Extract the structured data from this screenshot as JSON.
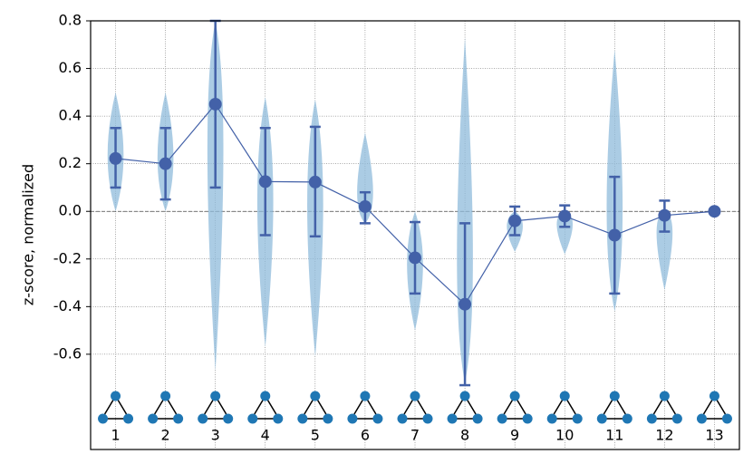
{
  "chart_data": {
    "type": "violin",
    "ylabel": "z-score, normalized",
    "categories": [
      "1",
      "2",
      "3",
      "4",
      "5",
      "6",
      "7",
      "8",
      "9",
      "10",
      "11",
      "12",
      "13"
    ],
    "values": [
      0.222,
      0.2,
      0.45,
      0.125,
      0.123,
      0.02,
      -0.195,
      -0.39,
      -0.04,
      -0.02,
      -0.1,
      -0.017,
      0.0
    ],
    "ci_low": [
      0.1,
      0.05,
      0.1,
      -0.1,
      -0.105,
      -0.05,
      -0.345,
      -0.73,
      -0.1,
      -0.065,
      -0.345,
      -0.085,
      0.0
    ],
    "ci_high": [
      0.35,
      0.35,
      0.8,
      0.35,
      0.355,
      0.08,
      -0.045,
      -0.05,
      0.02,
      0.025,
      0.145,
      0.045,
      0.0
    ],
    "violin_min": [
      0.0,
      0.0,
      -0.67,
      -0.57,
      -0.61,
      -0.05,
      -0.5,
      -0.72,
      -0.17,
      -0.18,
      -0.42,
      -0.33,
      0.0
    ],
    "violin_max": [
      0.5,
      0.5,
      0.8,
      0.48,
      0.47,
      0.33,
      0.0,
      0.73,
      0.0,
      0.0,
      0.68,
      0.0,
      0.0
    ],
    "color": "#4361a8",
    "violin_color": "#8fbbdb",
    "hline": 0,
    "ylim": [
      -1.0,
      0.8
    ],
    "yticks": [
      {
        "value": -0.6,
        "label": "-0.6"
      },
      {
        "value": -0.4,
        "label": "-0.4"
      },
      {
        "value": -0.2,
        "label": "-0.2"
      },
      {
        "value": 0,
        "label": "0.0"
      },
      0.2,
      0.4,
      0.6,
      0.8
    ],
    "grid": true
  }
}
